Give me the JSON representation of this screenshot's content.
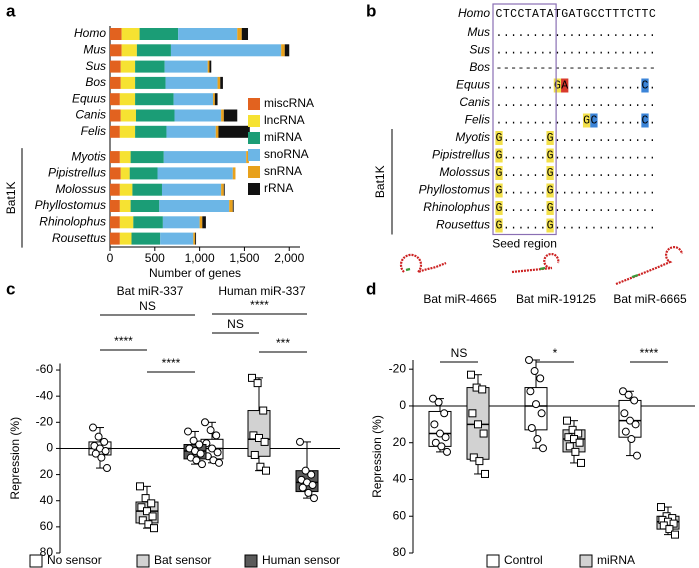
{
  "panel_labels": [
    "a",
    "b",
    "c",
    "d"
  ],
  "chart_data": [
    {
      "type": "stacked_barh",
      "x_label": "Number of genes",
      "categories": [
        "Homo",
        "Mus",
        "Sus",
        "Bos",
        "Equus",
        "Canis",
        "Felis",
        "Myotis",
        "Pipistrellus",
        "Molossus",
        "Phyllostomus",
        "Rhinolophus",
        "Rousettus"
      ],
      "group": {
        "label": "Bat1K",
        "start": 7,
        "end": 12
      },
      "series": [
        {
          "name": "miscRNA",
          "color": "#e2621f",
          "values": [
            130,
            130,
            120,
            120,
            110,
            120,
            110,
            110,
            120,
            110,
            110,
            110,
            110
          ]
        },
        {
          "name": "lncRNA",
          "color": "#f6e232",
          "values": [
            200,
            170,
            160,
            160,
            170,
            170,
            170,
            120,
            100,
            140,
            120,
            150,
            130
          ]
        },
        {
          "name": "miRNA",
          "color": "#1b9d76",
          "values": [
            430,
            380,
            330,
            340,
            430,
            430,
            350,
            370,
            310,
            330,
            320,
            330,
            320
          ]
        },
        {
          "name": "snoRNA",
          "color": "#6cb6e6",
          "values": [
            660,
            1230,
            480,
            580,
            440,
            520,
            550,
            920,
            840,
            660,
            780,
            410,
            370
          ]
        },
        {
          "name": "snRNA",
          "color": "#e8a11c",
          "values": [
            50,
            40,
            20,
            30,
            20,
            30,
            30,
            30,
            30,
            30,
            40,
            30,
            20
          ]
        },
        {
          "name": "rRNA",
          "color": "#111111",
          "values": [
            70,
            50,
            20,
            30,
            30,
            150,
            350,
            0,
            0,
            10,
            10,
            40,
            10
          ]
        }
      ],
      "xlim": [
        0,
        2120
      ],
      "xticks": [
        0,
        500,
        {
          "value": 1000,
          "label": "1,000"
        },
        {
          "value": 1500,
          "label": "1,500"
        },
        {
          "value": 2000,
          "label": "2,000"
        }
      ]
    },
    {
      "type": "box",
      "y_label": "Repression (%)",
      "categories": [
        "Bat miR-337",
        "Human miR-337"
      ],
      "ylim": [
        80,
        -65
      ],
      "yticks": [
        -60,
        -40,
        -20,
        0,
        20,
        40,
        60,
        80
      ],
      "series": [
        {
          "name": "No sensor",
          "color": "#ffffff",
          "marker": "circle",
          "boxes": [
            {
              "whislo": -16,
              "q1": -5,
              "med": 0,
              "q3": 5,
              "whishi": 15,
              "points": [
                -16,
                -9,
                -5,
                -2,
                0,
                2,
                4,
                7,
                15
              ]
            },
            {
              "whislo": -20,
              "q1": -7,
              "med": 0,
              "q3": 8,
              "whishi": 11,
              "points": [
                -20,
                -14,
                -10,
                -4,
                0,
                3,
                6,
                9,
                11
              ]
            }
          ]
        },
        {
          "name": "Bat sensor",
          "color": "#d2d2d2",
          "marker": "square",
          "boxes": [
            {
              "whislo": 29,
              "q1": 41,
              "med": 48,
              "q3": 57,
              "whishi": 61,
              "points": [
                29,
                38,
                42,
                45,
                48,
                52,
                55,
                58,
                61
              ]
            },
            {
              "whislo": -54,
              "q1": -29,
              "med": -7,
              "q3": 6,
              "whishi": 17,
              "points": [
                -54,
                -50,
                -29,
                -10,
                -8,
                -5,
                5,
                14,
                17
              ]
            }
          ]
        },
        {
          "name": "Human sensor",
          "color": "#5a5a5a",
          "marker": "circle",
          "boxes": [
            {
              "whislo": -13,
              "q1": -3,
              "med": 2,
              "q3": 8,
              "whishi": 12,
              "points": [
                -13,
                -6,
                -3,
                0,
                2,
                4,
                7,
                9,
                12
              ]
            },
            {
              "whislo": -5,
              "q1": 17,
              "med": 26,
              "q3": 33,
              "whishi": 38,
              "points": [
                -5,
                17,
                20,
                24,
                26,
                28,
                30,
                34,
                38
              ]
            }
          ]
        }
      ],
      "annotations": [
        {
          "text": "NS",
          "category": 0,
          "series": [
            0,
            2
          ]
        },
        {
          "text": "****",
          "category": 0,
          "series": [
            0,
            1
          ]
        },
        {
          "text": "****",
          "category": 0,
          "series": [
            1,
            2
          ]
        },
        {
          "text": "****",
          "category": 1,
          "series": [
            0,
            2
          ]
        },
        {
          "text": "NS",
          "category": 1,
          "series": [
            0,
            1
          ]
        },
        {
          "text": "***",
          "category": 1,
          "series": [
            1,
            2
          ]
        }
      ]
    },
    {
      "type": "box",
      "y_label": "Repression (%)",
      "categories": [
        "Bat miR-4665",
        "Bat miR-19125",
        "Bat miR-6665"
      ],
      "ylim": [
        80,
        -25
      ],
      "yticks": [
        -20,
        0,
        20,
        40,
        60,
        80
      ],
      "series": [
        {
          "name": "Control",
          "color": "#ffffff",
          "marker": "circle",
          "boxes": [
            {
              "whislo": -4,
              "q1": 3,
              "med": 15,
              "q3": 22,
              "whishi": 25,
              "points": [
                -4,
                -2,
                4,
                10,
                15,
                17,
                20,
                22,
                25
              ]
            },
            {
              "whislo": -25,
              "q1": -10,
              "med": 0,
              "q3": 13,
              "whishi": 23,
              "points": [
                -25,
                -19,
                -15,
                -8,
                -1,
                4,
                12,
                18,
                23
              ]
            },
            {
              "whislo": -8,
              "q1": -3,
              "med": 8,
              "q3": 17,
              "whishi": 27,
              "points": [
                -8,
                -6,
                -3,
                4,
                8,
                10,
                14,
                18,
                27
              ]
            }
          ]
        },
        {
          "name": "miRNA",
          "color": "#d2d2d2",
          "marker": "square",
          "boxes": [
            {
              "whislo": -17,
              "q1": -10,
              "med": 10,
              "q3": 29,
              "whishi": 37,
              "points": [
                -17,
                -10,
                -9,
                4,
                10,
                15,
                28,
                30,
                37
              ]
            },
            {
              "whislo": 8,
              "q1": 13,
              "med": 18,
              "q3": 25,
              "whishi": 31,
              "points": [
                8,
                13,
                15,
                17,
                18,
                20,
                22,
                25,
                31
              ]
            },
            {
              "whislo": 55,
              "q1": 60,
              "med": 63,
              "q3": 67,
              "whishi": 70,
              "points": [
                55,
                60,
                61,
                62,
                63,
                64,
                65,
                67,
                70
              ]
            }
          ]
        }
      ],
      "annotations": [
        {
          "text": "NS",
          "category": 0,
          "series": [
            0,
            1
          ]
        },
        {
          "text": "*",
          "category": 1,
          "series": [
            0,
            1
          ]
        },
        {
          "text": "****",
          "category": 2,
          "series": [
            0,
            1
          ]
        }
      ]
    }
  ],
  "alignment": {
    "reference": {
      "label": "Homo",
      "seq": "CTCCTATATGATGCCTTTCTTC"
    },
    "rows": [
      {
        "label": "Mus",
        "seq": "......................"
      },
      {
        "label": "Sus",
        "seq": "......................"
      },
      {
        "label": "Bos",
        "seq": "----------------------"
      },
      {
        "label": "Equus",
        "seq": "........GA..........C."
      },
      {
        "label": "Canis",
        "seq": "......................"
      },
      {
        "label": "Felis",
        "seq": "............GC......C."
      },
      {
        "label": "Myotis",
        "seq": "G......G.............."
      },
      {
        "label": "Pipistrellus",
        "seq": "G......G.............."
      },
      {
        "label": "Molossus",
        "seq": "G......G.............."
      },
      {
        "label": "Phyllostomus",
        "seq": "G......G.............."
      },
      {
        "label": "Rhinolophus",
        "seq": "G......G.............."
      },
      {
        "label": "Rousettus",
        "seq": "G......G.............."
      }
    ],
    "base_colors": {
      "G": "#f3e04a",
      "A": "#d8392b",
      "C": "#3b84d8"
    },
    "seed_label": "Seed region",
    "group": {
      "label": "Bat1K",
      "start": 6
    }
  }
}
